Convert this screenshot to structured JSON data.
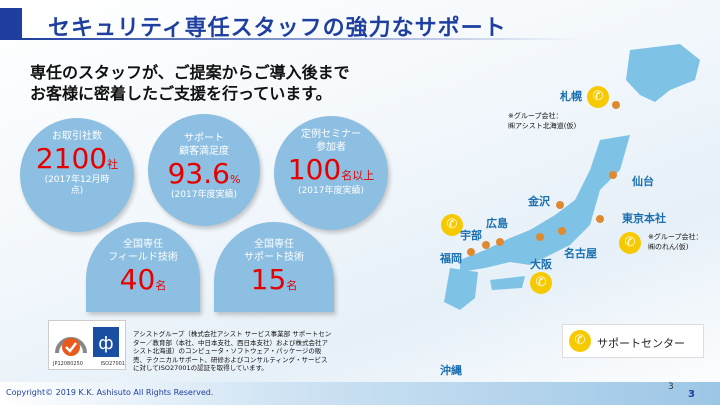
{
  "header": {
    "title": "セキュリティ専任スタッフの強力なサポート"
  },
  "lead": [
    "専任のスタッフが、ご提案からご導入後まで",
    "お客様に密着したご支援を行っています。"
  ],
  "stats": [
    {
      "label": [
        "お取引社数"
      ],
      "value": "2100",
      "unit": "社",
      "note": [
        "(2017年12月時",
        "点)"
      ]
    },
    {
      "label": [
        "サポート",
        "顧客満足度"
      ],
      "value": "93.6",
      "unit": "%",
      "note": [
        "(2017年度実績)"
      ]
    },
    {
      "label": [
        "定例セミナー",
        "参加者"
      ],
      "value": "100",
      "unit": "名以上",
      "note": [
        "(2017年度実績)"
      ]
    },
    {
      "label": [
        "全国専任",
        "フィールド技術"
      ],
      "value": "40",
      "unit": "名"
    },
    {
      "label": [
        "全国専任",
        "サポート技術"
      ],
      "value": "15",
      "unit": "名"
    }
  ],
  "cert": {
    "codes": [
      "JP12080250",
      "ISO27001"
    ],
    "text": "アシストグループ（株式会社アシスト サービス事業部 サポートセンター／教育部（本社、中日本支社、西日本支社）および株式会社アシスト北海道）のコンピュータ・ソフトウェア・パッケージの販売、テクニカルサポート、研修およびコンサルティング・サービスに対してISO27001の認証を取得しています。"
  },
  "map": {
    "cities": [
      "札幌",
      "仙台",
      "金沢",
      "東京本社",
      "広島",
      "宇部",
      "福岡",
      "名古屋",
      "大阪",
      "沖縄"
    ],
    "notes": [
      [
        "※グループ会社：",
        "㈱アシスト北海道(仮)"
      ],
      [
        "※グループ会社：",
        "㈱のれん(仮)"
      ]
    ],
    "legend": "サポートセンター",
    "accent": "#f7c900",
    "land": "#7ec3e6"
  },
  "footer": {
    "copyright": "Copyright© 2019 K.K. Ashisuto All Rights Reserved.",
    "page_small": "3",
    "page": "3"
  }
}
